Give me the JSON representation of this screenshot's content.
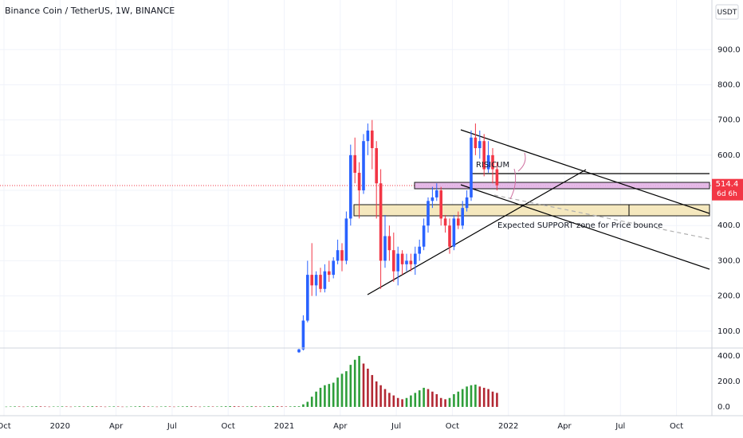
{
  "chart_data": [
    {
      "type": "candlestick",
      "title": "Binance Coin / TetherUS, 1W, BINANCE",
      "currency": "USDT",
      "countdown": "6d 6h",
      "annotations": [
        "RISICUM",
        "Expected SUPPORT zone for Price bounce"
      ],
      "x_labels": [
        "Oct",
        "2020",
        "Apr",
        "Jul",
        "Oct",
        "2021",
        "Apr",
        "Jul",
        "Oct",
        "2022",
        "Apr",
        "Jul",
        "Oct"
      ],
      "open": [
        40,
        48,
        130,
        260,
        230,
        260,
        220,
        270,
        260,
        300,
        330,
        300,
        420,
        600,
        550,
        500,
        640,
        670,
        620,
        520,
        300,
        370,
        330,
        270,
        320,
        290,
        300,
        290,
        320,
        340,
        400,
        470,
        480,
        500,
        420,
        400,
        340,
        420,
        400,
        450,
        480,
        650,
        620,
        640,
        560,
        600,
        560
      ],
      "high": [
        50,
        145,
        300,
        350,
        270,
        280,
        290,
        300,
        310,
        360,
        350,
        440,
        630,
        650,
        580,
        660,
        690,
        700,
        640,
        560,
        430,
        400,
        380,
        340,
        330,
        320,
        320,
        340,
        360,
        420,
        480,
        510,
        520,
        510,
        430,
        420,
        430,
        440,
        470,
        500,
        670,
        690,
        670,
        660,
        640,
        620,
        580
      ],
      "low": [
        38,
        45,
        125,
        200,
        200,
        210,
        210,
        240,
        250,
        290,
        270,
        290,
        400,
        520,
        420,
        490,
        600,
        560,
        420,
        220,
        280,
        300,
        240,
        230,
        260,
        270,
        270,
        260,
        300,
        330,
        380,
        450,
        470,
        400,
        380,
        320,
        330,
        390,
        390,
        440,
        470,
        600,
        590,
        540,
        550,
        520,
        500
      ],
      "close": [
        48,
        130,
        260,
        230,
        260,
        220,
        270,
        260,
        300,
        330,
        300,
        420,
        600,
        550,
        500,
        640,
        670,
        620,
        520,
        300,
        370,
        330,
        270,
        320,
        290,
        300,
        290,
        320,
        340,
        400,
        470,
        480,
        500,
        420,
        400,
        340,
        420,
        400,
        450,
        480,
        650,
        620,
        640,
        560,
        600,
        560,
        514.4
      ],
      "colors": {
        "up": "#2962ff",
        "down": "#f23645"
      },
      "ylim": [
        52,
        1041
      ],
      "yticks": [
        {
          "value": 100,
          "label": "100.0"
        },
        {
          "value": 200,
          "label": "200.0"
        },
        {
          "value": 300,
          "label": "300.0"
        },
        {
          "value": 400,
          "label": "400.0"
        },
        {
          "value": 500,
          "label": "500.0"
        },
        {
          "value": 600,
          "label": "600.0"
        },
        {
          "value": 700,
          "label": "700.0"
        },
        {
          "value": 800,
          "label": "800.0"
        },
        {
          "value": 900,
          "label": "900.0"
        }
      ],
      "grid": true
    },
    {
      "type": "bar",
      "values": [
        2,
        3,
        4,
        3,
        2,
        3,
        4,
        5,
        4,
        3,
        2,
        3,
        3,
        4,
        3,
        2,
        3,
        4,
        3,
        4,
        5,
        4,
        3,
        2,
        3,
        4,
        3,
        2,
        2,
        3,
        4,
        5,
        4,
        3,
        3,
        2,
        3,
        4,
        3,
        2,
        3,
        4,
        5,
        4,
        3,
        2,
        3,
        4,
        3,
        3,
        4,
        5,
        6,
        5,
        4,
        3,
        4,
        5,
        4,
        3,
        4,
        5,
        6,
        5,
        4,
        3,
        4,
        5,
        5,
        20,
        40,
        80,
        120,
        150,
        170,
        180,
        190,
        230,
        260,
        280,
        330,
        370,
        400,
        340,
        300,
        250,
        200,
        170,
        140,
        110,
        90,
        70,
        60,
        70,
        90,
        110,
        130,
        150,
        140,
        120,
        100,
        70,
        60,
        70,
        100,
        120,
        140,
        160,
        170,
        175,
        160,
        150,
        140,
        120,
        110
      ],
      "colors": {
        "up": "#2e9e3a",
        "down": "#b22833"
      },
      "ylim": [
        -69,
        462
      ],
      "yticks": [
        {
          "value": 0,
          "label": "0.0"
        },
        {
          "value": 200,
          "label": "200.0"
        },
        {
          "value": 400,
          "label": "400.0"
        }
      ]
    }
  ]
}
